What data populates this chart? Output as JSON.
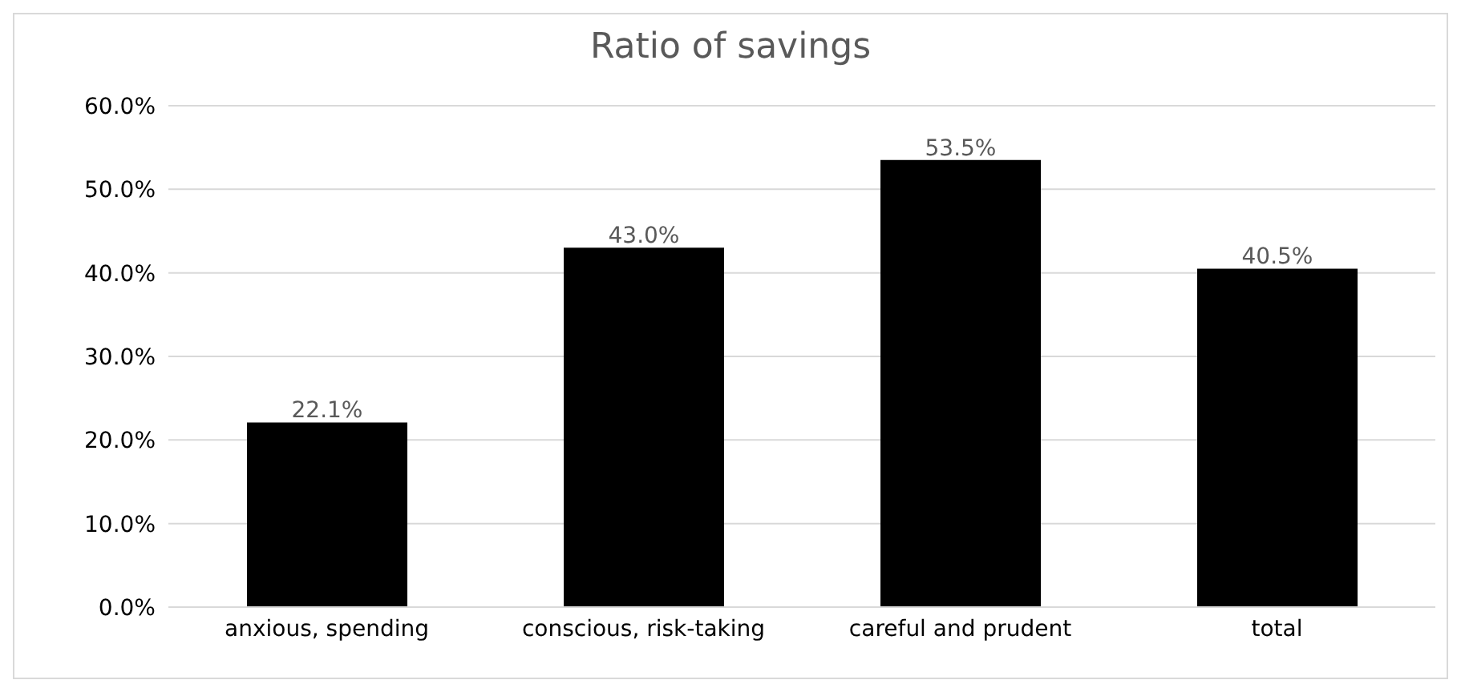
{
  "chart_data": {
    "type": "bar",
    "title": "Ratio of savings",
    "categories": [
      "anxious, spending",
      "conscious, risk-taking",
      "careful and prudent",
      "total"
    ],
    "values": [
      22.1,
      43.0,
      53.5,
      40.5
    ],
    "value_labels": [
      "22.1%",
      "43.0%",
      "53.5%",
      "40.5%"
    ],
    "color": "#000000",
    "ylim": [
      0,
      60
    ],
    "yticks": [
      {
        "value": 0,
        "label": "0.0%"
      },
      {
        "value": 10,
        "label": "10.0%"
      },
      {
        "value": 20,
        "label": "20.0%"
      },
      {
        "value": 30,
        "label": "30.0%"
      },
      {
        "value": 40,
        "label": "40.0%"
      },
      {
        "value": 50,
        "label": "50.0%"
      },
      {
        "value": 60,
        "label": "60.0%"
      }
    ],
    "grid": "y",
    "legend": false
  }
}
